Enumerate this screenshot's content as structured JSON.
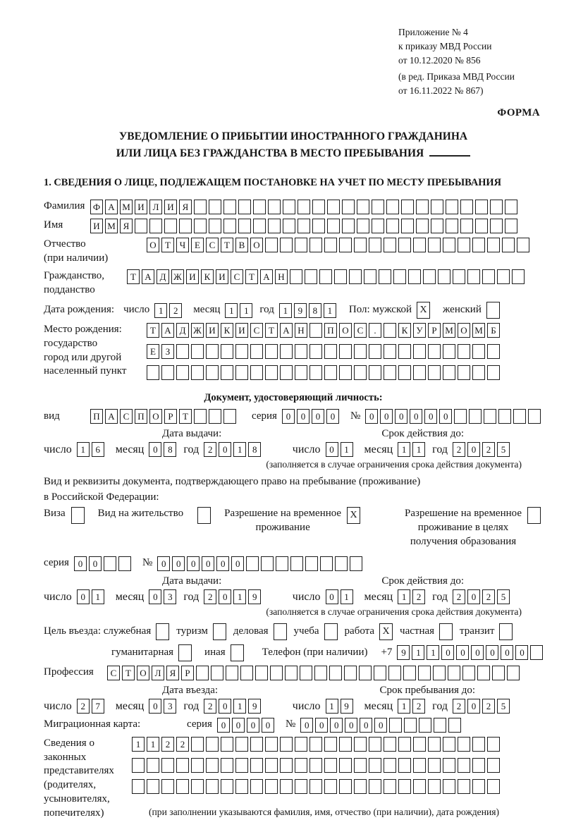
{
  "header": {
    "appendix_lines": [
      "Приложение № 4",
      "к приказу МВД России",
      "от 10.12.2020 № 856"
    ],
    "amendment_lines": [
      "(в ред. Приказа МВД России",
      "от 16.11.2022 № 867)"
    ],
    "forma": "ФОРМА"
  },
  "title": {
    "line1": "УВЕДОМЛЕНИЕ О ПРИБЫТИИ ИНОСТРАННОГО ГРАЖДАНИНА",
    "line2": "ИЛИ ЛИЦА БЕЗ ГРАЖДАНСТВА В МЕСТО ПРЕБЫВАНИЯ"
  },
  "section1": "1. СВЕДЕНИЯ О ЛИЦЕ, ПОДЛЕЖАЩЕМ ПОСТАНОВКЕ НА УЧЕТ ПО МЕСТУ ПРЕБЫВАНИЯ",
  "labels": {
    "surname": "Фамилия",
    "name": "Имя",
    "patronymic1": "Отчество",
    "patronymic2": "(при наличии)",
    "citizenship1": "Гражданство,",
    "citizenship2": "подданство",
    "birth_date": "Дата рождения:",
    "day": "число",
    "month": "месяц",
    "year": "год",
    "sex_male": "Пол: мужской",
    "sex_female": "женский",
    "birthplace1": "Место рождения:",
    "birthplace2": "государство",
    "birthplace3": "город или другой",
    "birthplace4": "населенный пункт",
    "identity_doc_header": "Документ, удостоверяющий личность:",
    "doc_type": "вид",
    "series": "серия",
    "number": "№",
    "issue_date": "Дата выдачи:",
    "valid_until": "Срок действия до:",
    "validity_note": "(заполняется в случае ограничения срока действия документа)",
    "residence_doc1": "Вид и реквизиты документа, подтверждающего право на пребывание (проживание)",
    "residence_doc2": "в Российской Федерации:",
    "visa": "Виза",
    "residence_permit": "Вид на жительство",
    "rvp1": "Разрешение на временное",
    "rvp2": "проживание",
    "rvp_edu1": "Разрешение на временное",
    "rvp_edu2": "проживание в целях",
    "rvp_edu3": "получения образования",
    "purpose": "Цель въезда: служебная",
    "tourism": "туризм",
    "business": "деловая",
    "study": "учеба",
    "work": "работа",
    "private": "частная",
    "transit": "транзит",
    "humanitarian": "гуманитарная",
    "other": "иная",
    "phone": "Телефон (при наличии)",
    "plus7": "+7",
    "profession": "Профессия",
    "entry_date": "Дата въезда:",
    "stay_until": "Срок пребывания до:",
    "migration_card": "Миграционная карта:",
    "rep1": "Сведения о",
    "rep2": "законных",
    "rep3": "представителях",
    "rep4": "(родителях,",
    "rep5": "усыновителях,",
    "rep6": "попечителях)",
    "rep_note": "(при заполнении указываются фамилия, имя, отчество (при наличии), дата рождения)"
  },
  "fields": {
    "surname": {
      "v": "ФАМИЛИЯ",
      "n": 29
    },
    "name": {
      "v": "ИМЯ",
      "n": 29
    },
    "patronymic": {
      "v": "ОТЧЕСТВО",
      "n": 26
    },
    "citizenship": {
      "v": "ТАДЖИКИСТАН",
      "n": 27
    },
    "birth_day": {
      "v": "12",
      "n": 2
    },
    "birth_month": {
      "v": "11",
      "n": 2
    },
    "birth_year": {
      "v": "1981",
      "n": 4
    },
    "sex_male": {
      "v": "X",
      "n": 1
    },
    "sex_female": {
      "v": "",
      "n": 1
    },
    "birthplace_row1": {
      "v": "ТАДЖИКИСТАН ПОС. КУРМОМБ",
      "n": 24
    },
    "birthplace_row2": {
      "v": "ЕЗ",
      "n": 24
    },
    "birthplace_row3": {
      "v": "",
      "n": 24
    },
    "doc_type": {
      "v": "ПАСПОРТ",
      "n": 10
    },
    "doc_series": {
      "v": "0000",
      "n": 4
    },
    "doc_number": {
      "v": "000000",
      "n": 12
    },
    "doc_issue_day": {
      "v": "16",
      "n": 2
    },
    "doc_issue_month": {
      "v": "08",
      "n": 2
    },
    "doc_issue_year": {
      "v": "2018",
      "n": 4
    },
    "doc_valid_day": {
      "v": "01",
      "n": 2
    },
    "doc_valid_month": {
      "v": "11",
      "n": 2
    },
    "doc_valid_year": {
      "v": "2025",
      "n": 4
    },
    "cb_visa": {
      "v": "",
      "n": 1
    },
    "cb_residence_permit": {
      "v": "",
      "n": 1
    },
    "cb_rvp": {
      "v": "X",
      "n": 1
    },
    "cb_rvp_edu": {
      "v": "",
      "n": 1
    },
    "res_series": {
      "v": "00",
      "n": 4
    },
    "res_number": {
      "v": "000000",
      "n": 14
    },
    "res_issue_day": {
      "v": "01",
      "n": 2
    },
    "res_issue_month": {
      "v": "03",
      "n": 2
    },
    "res_issue_year": {
      "v": "2019",
      "n": 4
    },
    "res_valid_day": {
      "v": "01",
      "n": 2
    },
    "res_valid_month": {
      "v": "12",
      "n": 2
    },
    "res_valid_year": {
      "v": "2025",
      "n": 4
    },
    "cb_official": {
      "v": "",
      "n": 1
    },
    "cb_tourism": {
      "v": "",
      "n": 1
    },
    "cb_business": {
      "v": "",
      "n": 1
    },
    "cb_study": {
      "v": "",
      "n": 1
    },
    "cb_work": {
      "v": "X",
      "n": 1
    },
    "cb_private": {
      "v": "",
      "n": 1
    },
    "cb_transit": {
      "v": "",
      "n": 1
    },
    "cb_humanitarian": {
      "v": "",
      "n": 1
    },
    "cb_other": {
      "v": "",
      "n": 1
    },
    "phone": {
      "v": "911000000",
      "n": 10
    },
    "profession": {
      "v": "СТОЛЯР",
      "n": 28
    },
    "entry_day": {
      "v": "27",
      "n": 2
    },
    "entry_month": {
      "v": "03",
      "n": 2
    },
    "entry_year": {
      "v": "2019",
      "n": 4
    },
    "stay_day": {
      "v": "19",
      "n": 2
    },
    "stay_month": {
      "v": "12",
      "n": 2
    },
    "stay_year": {
      "v": "2025",
      "n": 4
    },
    "mig_series": {
      "v": "0000",
      "n": 4
    },
    "mig_number": {
      "v": "000000",
      "n": 11
    },
    "rep_row1": {
      "v": "1122",
      "n": 25
    },
    "rep_row2": {
      "v": "",
      "n": 25
    },
    "rep_row3": {
      "v": "",
      "n": 25
    }
  }
}
